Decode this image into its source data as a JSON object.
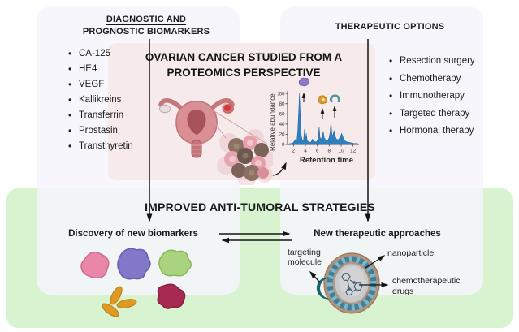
{
  "figure": {
    "biomarkers_panel": {
      "title_line1": "DIAGNOSTIC AND",
      "title_line2": "PROGNOSTIC BIOMARKERS",
      "items": [
        "CA-125",
        "HE4",
        "VEGF",
        "Kallikreins",
        "Transferrin",
        "Prostasin",
        "Transthyretin"
      ]
    },
    "therapeutic_panel": {
      "title": "THERAPEUTIC OPTIONS",
      "items": [
        "Resection surgery",
        "Chemotherapy",
        "Immunotherapy",
        "Targeted therapy",
        "Hormonal therapy"
      ]
    },
    "central_panel": {
      "title_line1": "OVARIAN CANCER STUDIED FROM A",
      "title_line2": "PROTEOMICS PERSPECTIVE"
    },
    "strategies_panel": {
      "title": "IMPROVED ANTI-TUMORAL STRATEGIES",
      "left_caption": "Discovery of new biomarkers",
      "right_caption": "New therapeutic approaches",
      "targeting_label_line1": "targeting",
      "targeting_label_line2": "molecule",
      "nanoparticle_label": "nanoparticle",
      "chemo_label_line1": "chemotherapeutic",
      "chemo_label_line2": "drugs"
    },
    "colors": {
      "green_panel": "#d8f3d0",
      "lavender_panel": "#f6f4fa",
      "pink_panel": "#f6eaea",
      "chart_blue": "#2e7fbe",
      "text_dark": "#1d1d1d"
    }
  },
  "chart_data": {
    "type": "area",
    "title": "",
    "xlabel": "Retention time",
    "ylabel": "Relative abundance",
    "xlim": [
      1,
      13
    ],
    "ylim": [
      0,
      105
    ],
    "xticks": [
      2,
      4,
      6,
      8,
      10,
      12
    ],
    "yticks": [
      0,
      20,
      40,
      60,
      80,
      100
    ],
    "grid": false,
    "legend": "none",
    "series": [
      {
        "name": "chromatogram",
        "points": [
          [
            1,
            1
          ],
          [
            1.6,
            2
          ],
          [
            2.0,
            4
          ],
          [
            2.3,
            10
          ],
          [
            2.55,
            6
          ],
          [
            2.7,
            25
          ],
          [
            2.85,
            60
          ],
          [
            3.0,
            100
          ],
          [
            3.15,
            55
          ],
          [
            3.3,
            18
          ],
          [
            3.5,
            8
          ],
          [
            3.7,
            10
          ],
          [
            3.85,
            30
          ],
          [
            4.0,
            12
          ],
          [
            4.15,
            22
          ],
          [
            4.3,
            8
          ],
          [
            4.6,
            5
          ],
          [
            4.9,
            4
          ],
          [
            5.2,
            11
          ],
          [
            5.5,
            6
          ],
          [
            5.8,
            5
          ],
          [
            6.1,
            9
          ],
          [
            6.3,
            35
          ],
          [
            6.45,
            14
          ],
          [
            6.6,
            10
          ],
          [
            6.8,
            16
          ],
          [
            7.0,
            26
          ],
          [
            7.15,
            14
          ],
          [
            7.4,
            9
          ],
          [
            7.7,
            7
          ],
          [
            8.0,
            14
          ],
          [
            8.15,
            24
          ],
          [
            8.3,
            45
          ],
          [
            8.45,
            22
          ],
          [
            8.6,
            16
          ],
          [
            8.8,
            28
          ],
          [
            9.0,
            16
          ],
          [
            9.2,
            11
          ],
          [
            9.5,
            9
          ],
          [
            9.8,
            14
          ],
          [
            10.1,
            22
          ],
          [
            10.4,
            12
          ],
          [
            10.7,
            7
          ],
          [
            11.0,
            5
          ],
          [
            11.4,
            4
          ],
          [
            11.8,
            3
          ],
          [
            12.2,
            2
          ],
          [
            12.6,
            2
          ],
          [
            13,
            1
          ]
        ]
      }
    ],
    "annotations": [
      {
        "x": 3.0,
        "y": 100,
        "marker": "protein-blob-purple"
      },
      {
        "x": 6.3,
        "y": 35,
        "marker": "protein-blob-orange"
      },
      {
        "x": 8.3,
        "y": 45,
        "marker": "protein-blob-teal"
      }
    ]
  }
}
